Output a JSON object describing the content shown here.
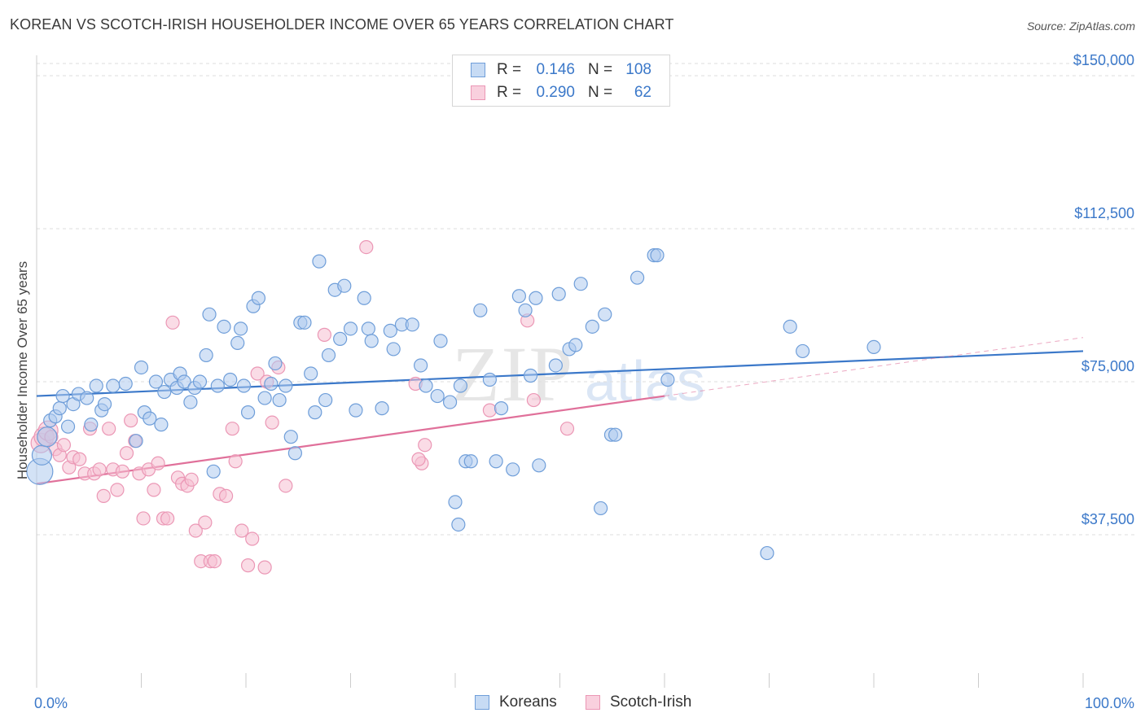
{
  "title": "KOREAN VS SCOTCH-IRISH HOUSEHOLDER INCOME OVER 65 YEARS CORRELATION CHART",
  "source": "Source: ZipAtlas.com",
  "watermark": "ZIPatlas",
  "colors": {
    "blue": "#3b78c9",
    "blue_fill": "#aecbee",
    "blue_stroke": "#6f9ed9",
    "pink": "#e0709a",
    "pink_fill": "#f5bfd1",
    "pink_stroke": "#eb97b5",
    "grid": "#dddddd"
  },
  "legend": {
    "rows": [
      {
        "r_label": "R =",
        "r_value": "0.146",
        "n_label": "N =",
        "n_value": "108",
        "series": "Koreans"
      },
      {
        "r_label": "R =",
        "r_value": "0.290",
        "n_label": "N =",
        "n_value": "62",
        "series": "Scotch-Irish"
      }
    ]
  },
  "bottom_legend": [
    "Koreans",
    "Scotch-Irish"
  ],
  "chart_data": {
    "type": "scatter",
    "title": "KOREAN VS SCOTCH-IRISH HOUSEHOLDER INCOME OVER 65 YEARS CORRELATION CHART",
    "xlabel": "",
    "ylabel": "Householder Income Over 65 years",
    "xlim": [
      0,
      100
    ],
    "ylim": [
      0,
      153000
    ],
    "x_tick_labels": [
      "0.0%",
      "100.0%"
    ],
    "y_ticks": [
      37500,
      75000,
      112500,
      150000
    ],
    "y_tick_labels": [
      "$37,500",
      "$75,000",
      "$112,500",
      "$150,000"
    ],
    "grid": true,
    "legend_position": "top-center",
    "series": [
      {
        "name": "Koreans",
        "r": 0.146,
        "n": 108,
        "trend": {
          "x": [
            0,
            100
          ],
          "y": [
            71500,
            82500
          ]
        },
        "points": [
          [
            0.3,
            53000
          ],
          [
            0.5,
            57000
          ],
          [
            1.0,
            61500
          ],
          [
            1.3,
            65500
          ],
          [
            1.8,
            66500
          ],
          [
            2.2,
            68500
          ],
          [
            2.5,
            71500
          ],
          [
            3.0,
            64000
          ],
          [
            3.5,
            69500
          ],
          [
            4.0,
            72000
          ],
          [
            4.8,
            71000
          ],
          [
            5.2,
            64500
          ],
          [
            5.7,
            74000
          ],
          [
            6.2,
            68000
          ],
          [
            6.5,
            69500
          ],
          [
            7.3,
            74000
          ],
          [
            8.5,
            74500
          ],
          [
            9.5,
            60500
          ],
          [
            10.0,
            78500
          ],
          [
            10.3,
            67500
          ],
          [
            10.8,
            66000
          ],
          [
            11.4,
            75000
          ],
          [
            11.9,
            64500
          ],
          [
            12.2,
            72500
          ],
          [
            12.8,
            75500
          ],
          [
            13.4,
            73500
          ],
          [
            13.7,
            77000
          ],
          [
            14.1,
            75000
          ],
          [
            14.7,
            70000
          ],
          [
            15.1,
            73500
          ],
          [
            15.6,
            75000
          ],
          [
            16.2,
            81500
          ],
          [
            16.5,
            91500
          ],
          [
            16.9,
            53000
          ],
          [
            17.3,
            74000
          ],
          [
            17.9,
            88500
          ],
          [
            18.5,
            75500
          ],
          [
            19.2,
            84500
          ],
          [
            19.5,
            88000
          ],
          [
            19.8,
            74000
          ],
          [
            20.2,
            67500
          ],
          [
            20.7,
            93500
          ],
          [
            21.2,
            95500
          ],
          [
            21.8,
            71000
          ],
          [
            22.4,
            74500
          ],
          [
            22.8,
            79500
          ],
          [
            23.2,
            70500
          ],
          [
            23.8,
            74000
          ],
          [
            24.3,
            61500
          ],
          [
            24.7,
            57500
          ],
          [
            25.2,
            89500
          ],
          [
            25.6,
            89500
          ],
          [
            26.2,
            77000
          ],
          [
            26.6,
            67500
          ],
          [
            27.0,
            104500
          ],
          [
            27.6,
            70500
          ],
          [
            27.9,
            81500
          ],
          [
            28.5,
            97500
          ],
          [
            29.0,
            85500
          ],
          [
            29.4,
            98500
          ],
          [
            30.0,
            88000
          ],
          [
            30.5,
            68000
          ],
          [
            31.3,
            95500
          ],
          [
            31.7,
            88000
          ],
          [
            32.0,
            85000
          ],
          [
            33.0,
            68500
          ],
          [
            33.8,
            87500
          ],
          [
            34.1,
            83000
          ],
          [
            34.9,
            89000
          ],
          [
            35.9,
            89000
          ],
          [
            36.7,
            79000
          ],
          [
            37.2,
            74000
          ],
          [
            38.3,
            71500
          ],
          [
            38.6,
            85000
          ],
          [
            39.5,
            70000
          ],
          [
            40.0,
            45500
          ],
          [
            40.3,
            40000
          ],
          [
            40.5,
            74000
          ],
          [
            41.0,
            55500
          ],
          [
            41.5,
            55500
          ],
          [
            42.4,
            92500
          ],
          [
            43.3,
            75500
          ],
          [
            43.9,
            55500
          ],
          [
            44.4,
            68500
          ],
          [
            45.5,
            53500
          ],
          [
            46.1,
            96000
          ],
          [
            46.7,
            92500
          ],
          [
            47.2,
            76500
          ],
          [
            47.7,
            95500
          ],
          [
            48.0,
            54500
          ],
          [
            49.6,
            79000
          ],
          [
            49.9,
            96500
          ],
          [
            50.9,
            83000
          ],
          [
            51.5,
            84000
          ],
          [
            52.0,
            99000
          ],
          [
            53.1,
            88500
          ],
          [
            53.9,
            44000
          ],
          [
            54.3,
            91500
          ],
          [
            54.9,
            62000
          ],
          [
            55.3,
            62000
          ],
          [
            57.4,
            100500
          ],
          [
            59.0,
            106000
          ],
          [
            59.3,
            106000
          ],
          [
            69.8,
            33000
          ],
          [
            73.2,
            82500
          ],
          [
            80.0,
            83500
          ],
          [
            72.0,
            88500
          ],
          [
            60.3,
            75500
          ]
        ]
      },
      {
        "name": "Scotch-Irish",
        "r": 0.29,
        "n": 62,
        "trend": {
          "x": [
            0,
            60
          ],
          "y": [
            50000,
            71500
          ]
        },
        "points": [
          [
            0.4,
            60000
          ],
          [
            0.7,
            61500
          ],
          [
            1.1,
            63000
          ],
          [
            1.4,
            61500
          ],
          [
            1.8,
            58500
          ],
          [
            2.2,
            57000
          ],
          [
            2.6,
            59500
          ],
          [
            3.1,
            54000
          ],
          [
            3.5,
            56500
          ],
          [
            4.1,
            56000
          ],
          [
            4.6,
            52500
          ],
          [
            5.1,
            63500
          ],
          [
            5.5,
            52500
          ],
          [
            6.0,
            53500
          ],
          [
            6.4,
            47000
          ],
          [
            6.9,
            63500
          ],
          [
            7.3,
            53500
          ],
          [
            7.7,
            48500
          ],
          [
            8.2,
            53000
          ],
          [
            8.6,
            57500
          ],
          [
            9.0,
            65500
          ],
          [
            9.4,
            60500
          ],
          [
            9.8,
            52500
          ],
          [
            10.2,
            41500
          ],
          [
            10.7,
            53500
          ],
          [
            11.2,
            48500
          ],
          [
            11.6,
            55000
          ],
          [
            12.1,
            41500
          ],
          [
            12.5,
            41500
          ],
          [
            13.0,
            89500
          ],
          [
            13.5,
            51500
          ],
          [
            13.9,
            50000
          ],
          [
            14.4,
            49500
          ],
          [
            14.8,
            51000
          ],
          [
            15.2,
            38500
          ],
          [
            15.7,
            31000
          ],
          [
            16.1,
            40500
          ],
          [
            16.6,
            31000
          ],
          [
            17.0,
            31000
          ],
          [
            17.5,
            47500
          ],
          [
            18.1,
            47000
          ],
          [
            18.7,
            63500
          ],
          [
            19.0,
            55500
          ],
          [
            19.6,
            38500
          ],
          [
            20.2,
            30000
          ],
          [
            20.6,
            36500
          ],
          [
            21.1,
            77000
          ],
          [
            21.8,
            29500
          ],
          [
            22.0,
            75000
          ],
          [
            22.5,
            65000
          ],
          [
            23.1,
            78500
          ],
          [
            23.8,
            49500
          ],
          [
            27.5,
            86500
          ],
          [
            31.5,
            108000
          ],
          [
            36.2,
            74500
          ],
          [
            36.8,
            55000
          ],
          [
            37.1,
            59500
          ],
          [
            43.3,
            68000
          ],
          [
            46.9,
            90000
          ],
          [
            47.5,
            70500
          ],
          [
            50.7,
            63500
          ],
          [
            36.5,
            56000
          ]
        ]
      }
    ]
  }
}
